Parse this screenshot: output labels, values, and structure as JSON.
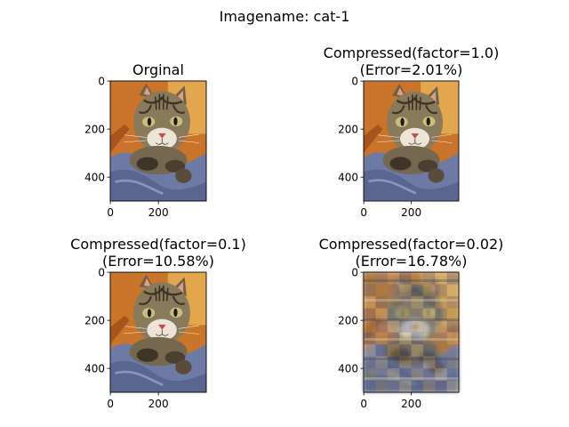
{
  "figure": {
    "suptitle": "Imagename: cat-1"
  },
  "chart_data": [
    {
      "type": "image",
      "title_lines": [
        "Orginal"
      ],
      "xticks": [
        0,
        200
      ],
      "yticks": [
        0,
        200,
        400
      ],
      "image_extent": {
        "width": 400,
        "height": 500
      },
      "image_subject": "tabby cat lying on blue blanket",
      "quality": "sharp"
    },
    {
      "type": "image",
      "title_lines": [
        "Compressed(factor=1.0)",
        "(Error=2.01%)"
      ],
      "xticks": [
        0,
        200
      ],
      "yticks": [
        0,
        200,
        400
      ],
      "image_extent": {
        "width": 400,
        "height": 500
      },
      "image_subject": "tabby cat lying on blue blanket",
      "quality": "sharp"
    },
    {
      "type": "image",
      "title_lines": [
        "Compressed(factor=0.1)",
        "(Error=10.58%)"
      ],
      "xticks": [
        0,
        200
      ],
      "yticks": [
        0,
        200,
        400
      ],
      "image_extent": {
        "width": 400,
        "height": 500
      },
      "image_subject": "tabby cat lying on blue blanket",
      "quality": "slightly blurred"
    },
    {
      "type": "image",
      "title_lines": [
        "Compressed(factor=0.02)",
        "(Error=16.78%)"
      ],
      "xticks": [
        0,
        200
      ],
      "yticks": [
        0,
        200,
        400
      ],
      "image_extent": {
        "width": 400,
        "height": 500
      },
      "image_subject": "tabby cat lying on blue blanket",
      "quality": "heavily blocky"
    }
  ]
}
